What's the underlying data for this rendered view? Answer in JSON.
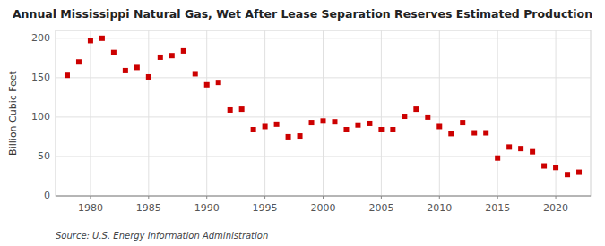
{
  "chart_data": {
    "type": "scatter",
    "title": "Annual Mississippi Natural Gas, Wet After Lease Separation Reserves Estimated Production",
    "ylabel": "Billion Cubic Feet",
    "annotation": "Source: U.S. Energy Information Administration",
    "color": "#cc0000",
    "marker": "square",
    "grid": true,
    "x": [
      1978,
      1979,
      1980,
      1981,
      1982,
      1983,
      1984,
      1985,
      1986,
      1987,
      1988,
      1989,
      1990,
      1991,
      1992,
      1993,
      1994,
      1995,
      1996,
      1997,
      1998,
      1999,
      2000,
      2001,
      2002,
      2003,
      2004,
      2005,
      2006,
      2007,
      2008,
      2009,
      2010,
      2011,
      2012,
      2013,
      2014,
      2015,
      2016,
      2017,
      2018,
      2019,
      2020,
      2021,
      2022
    ],
    "values": [
      153,
      170,
      197,
      200,
      182,
      159,
      163,
      151,
      176,
      178,
      184,
      155,
      141,
      144,
      109,
      110,
      84,
      88,
      91,
      75,
      76,
      93,
      95,
      94,
      84,
      90,
      92,
      84,
      84,
      101,
      110,
      100,
      88,
      79,
      93,
      80,
      80,
      48,
      62,
      60,
      56,
      38,
      36,
      27,
      30
    ],
    "xlim": [
      1977,
      2023
    ],
    "ylim": [
      0,
      210
    ],
    "xticks": [
      1980,
      1985,
      1990,
      1995,
      2000,
      2005,
      2010,
      2015,
      2020
    ],
    "yticks": [
      0,
      50,
      100,
      150,
      200
    ]
  }
}
